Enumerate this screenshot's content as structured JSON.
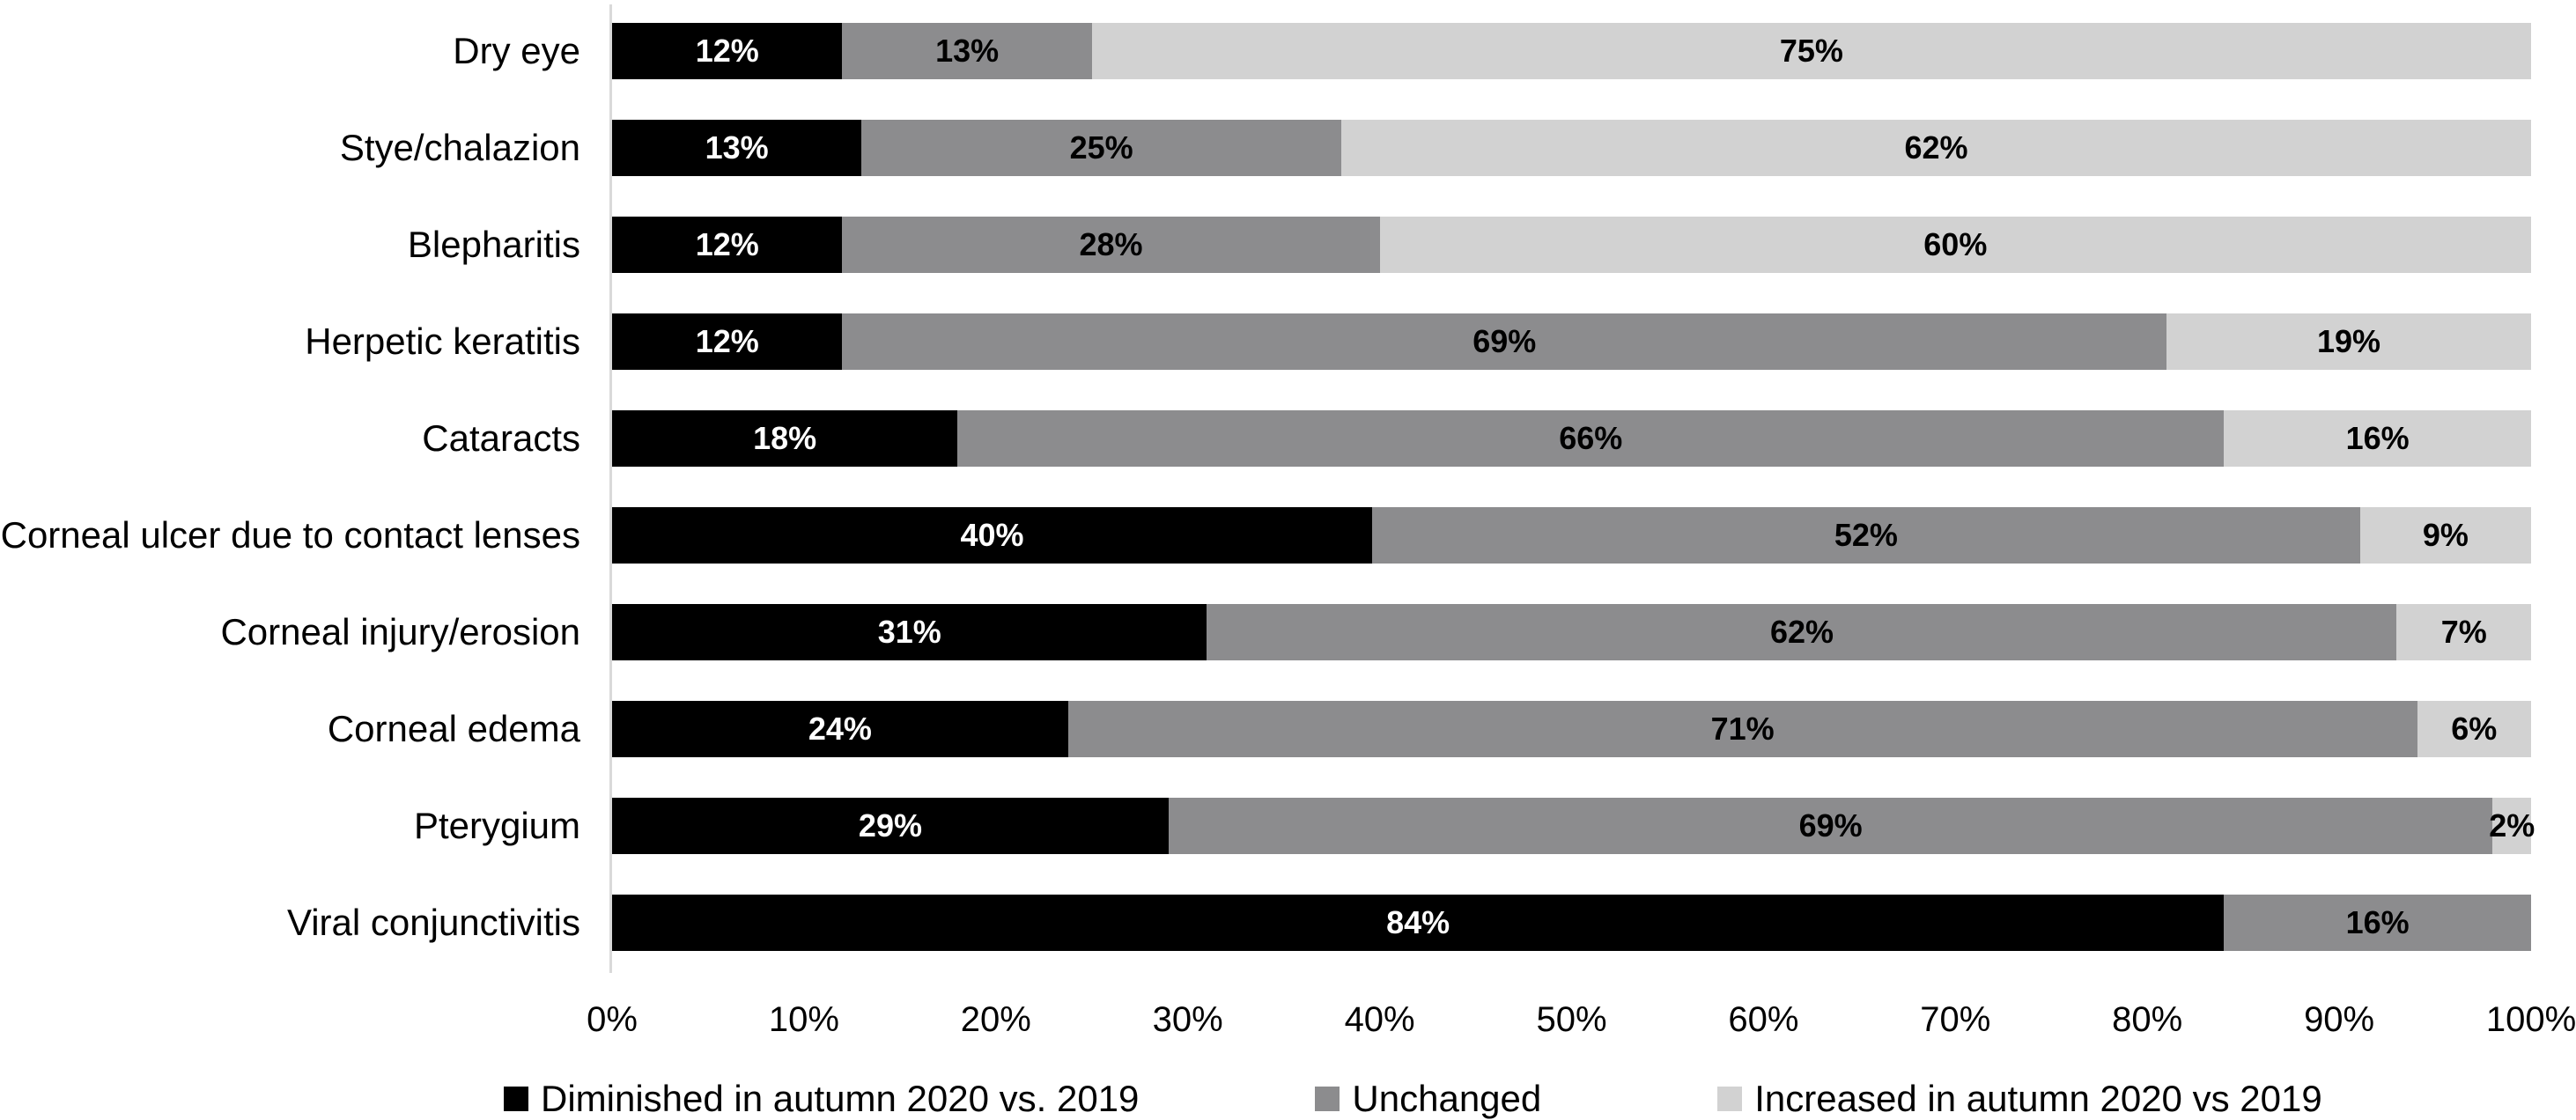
{
  "chart_data": {
    "type": "bar",
    "orientation": "horizontal",
    "stacked": true,
    "title": "",
    "xlabel": "",
    "ylabel": "",
    "xlim": [
      0,
      100
    ],
    "grid": false,
    "legend_position": "bottom",
    "axis_line_color": "#D9D9D9",
    "value_suffix": "%",
    "categories": [
      "Dry eye",
      "Stye/chalazion",
      "Blepharitis",
      "Herpetic keratitis",
      "Cataracts",
      "Corneal ulcer due to contact lenses",
      "Corneal injury/erosion",
      "Corneal edema",
      "Pterygium",
      "Viral conjunctivitis"
    ],
    "series": [
      {
        "name": "Diminished in autumn 2020 vs. 2019",
        "color": "#000000",
        "label_color": "#FFFFFF",
        "values": [
          12,
          13,
          12,
          12,
          18,
          40,
          31,
          24,
          29,
          84
        ]
      },
      {
        "name": "Unchanged",
        "color": "#8C8C8E",
        "label_color": "#000000",
        "values": [
          13,
          25,
          28,
          69,
          66,
          52,
          62,
          71,
          69,
          16
        ]
      },
      {
        "name": "Increased in autumn 2020 vs 2019",
        "color": "#D2D2D2",
        "label_color": "#000000",
        "values": [
          75,
          62,
          60,
          19,
          16,
          9,
          7,
          6,
          2,
          0
        ]
      }
    ],
    "x_ticks": [
      "0%",
      "10%",
      "20%",
      "30%",
      "40%",
      "50%",
      "60%",
      "70%",
      "80%",
      "90%",
      "100%"
    ]
  },
  "legend": {
    "items": [
      {
        "label": "Diminished in autumn 2020 vs. 2019",
        "color": "#000000"
      },
      {
        "label": "Unchanged",
        "color": "#8C8C8E"
      },
      {
        "label": "Increased in autumn 2020 vs 2019",
        "color": "#D2D2D2"
      }
    ]
  }
}
